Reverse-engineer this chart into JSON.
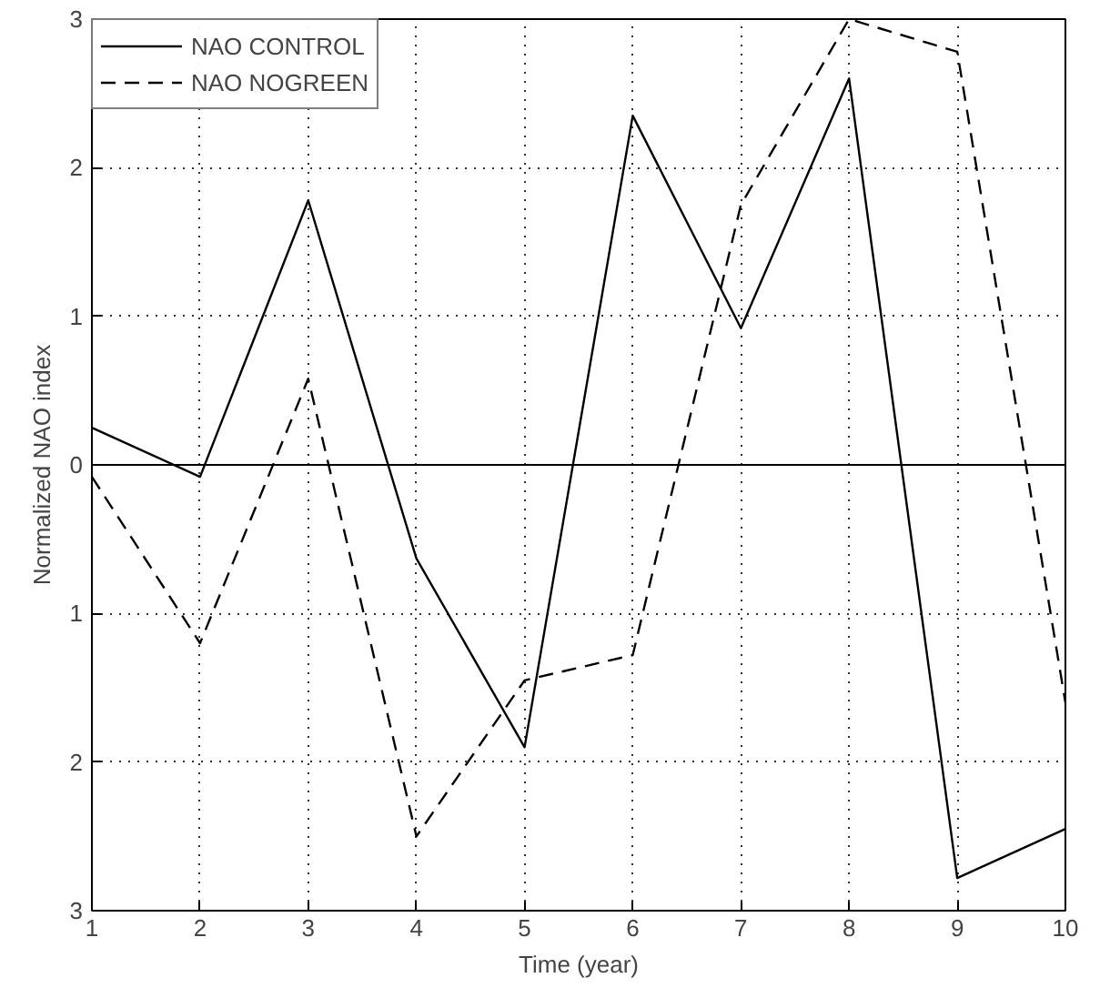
{
  "chart_data": {
    "type": "line",
    "xlabel": "Time (year)",
    "ylabel": "Normalized NAO index",
    "x": [
      1,
      2,
      3,
      4,
      5,
      6,
      7,
      8,
      9,
      10
    ],
    "series": [
      {
        "name": "NAO CONTROL",
        "color": "#000000",
        "line_style": "solid",
        "values": [
          0.25,
          -0.08,
          1.78,
          -0.63,
          -1.9,
          2.35,
          0.92,
          2.6,
          -2.78,
          -2.45
        ]
      },
      {
        "name": "NAO NOGREEN",
        "color": "#000000",
        "line_style": "dashed",
        "values": [
          -0.08,
          -1.2,
          0.58,
          -2.5,
          -1.45,
          -1.28,
          1.75,
          3.0,
          2.78,
          -1.6
        ]
      }
    ],
    "xlim": [
      1,
      10
    ],
    "ylim": [
      -3,
      3
    ],
    "xticks": [
      1,
      2,
      3,
      4,
      5,
      6,
      7,
      8,
      9,
      10
    ],
    "yticks": [
      {
        "value": -3,
        "label": "3"
      },
      {
        "value": -2,
        "label": "2"
      },
      {
        "value": -1,
        "label": "1"
      },
      0,
      1,
      2,
      3
    ],
    "ref_lines": [
      {
        "axis": "y",
        "value": 0,
        "color": "#000000",
        "line_style": "solid"
      }
    ],
    "grid": true,
    "legend": "top left",
    "marker": "none"
  }
}
